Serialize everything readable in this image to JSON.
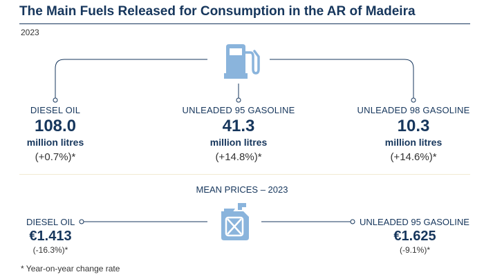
{
  "title": "The Main Fuels Released for Consumption in the AR of Madeira",
  "year": "2023",
  "fuels": [
    {
      "label": "DIESEL OIL",
      "value": "108.0",
      "unit": "million litres",
      "change": "(+0.7%)*"
    },
    {
      "label": "UNLEADED 95 GASOLINE",
      "value": "41.3",
      "unit": "million litres",
      "change": "(+14.8%)*"
    },
    {
      "label": "UNLEADED 98 GASOLINE",
      "value": "10.3",
      "unit": "million litres",
      "change": "(+14.6%)*"
    }
  ],
  "mean_prices": {
    "title": "MEAN PRICES – 2023",
    "diesel": {
      "label": "DIESEL OIL",
      "value": "€1.413",
      "change": "(-16.3%)*"
    },
    "gasoline": {
      "label": "UNLEADED 95 GASOLINE",
      "value": "€1.625",
      "change": "(-9.1%)*"
    }
  },
  "footnote": "* Year-on-year change rate",
  "icons": {
    "top": "fuel-pump-icon",
    "bottom": "jerrycan-icon"
  },
  "colors": {
    "navy": "#16365c",
    "icon_blue": "#8ab4dc",
    "divider": "#f2ead2"
  }
}
